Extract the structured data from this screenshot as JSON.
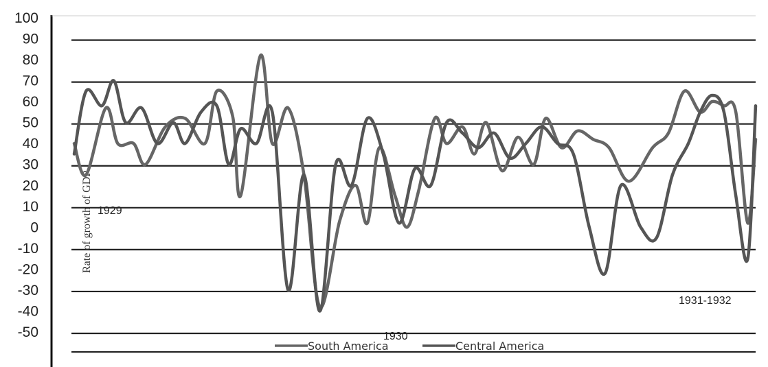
{
  "chart_data": {
    "type": "line",
    "title": "",
    "xlabel": "",
    "ylabel": "Rate of growth of GDP",
    "ylim": [
      -50,
      100
    ],
    "yticks": [
      100,
      90,
      80,
      70,
      60,
      50,
      40,
      30,
      20,
      10,
      0,
      -10,
      -20,
      -30,
      -40,
      -50
    ],
    "xlim": [
      0,
      172
    ],
    "grid": true,
    "legend_position": "bottom-center",
    "annotations": [
      {
        "text": "1929",
        "x": 8,
        "y": 16
      },
      {
        "text": "1930",
        "x": 81,
        "y": -53
      },
      {
        "text": "1931-1932",
        "x": 159,
        "y": -37
      }
    ],
    "colors": {
      "south_america": "#666666",
      "central_america": "#555555"
    },
    "series": [
      {
        "name": "South America",
        "x": [
          0,
          3,
          8,
          11,
          15,
          18,
          23,
          28,
          33,
          36,
          40,
          42,
          47,
          50,
          54,
          58,
          62,
          67,
          71,
          74,
          77,
          81,
          84,
          87,
          91,
          94,
          98,
          101,
          104,
          108,
          112,
          116,
          119,
          123,
          127,
          131,
          135,
          140,
          146,
          150,
          154,
          158,
          161,
          164,
          167,
          170,
          172
        ],
        "y": [
          40,
          25,
          57,
          40,
          40,
          30,
          48,
          52,
          40,
          65,
          53,
          15,
          82,
          40,
          57,
          25,
          -38,
          3,
          20,
          2,
          38,
          15,
          0,
          18,
          52,
          40,
          48,
          35,
          50,
          27,
          43,
          30,
          52,
          38,
          46,
          42,
          38,
          22,
          38,
          45,
          65,
          55,
          60,
          58,
          55,
          2,
          42
        ]
      },
      {
        "name": "Central America",
        "x": [
          0,
          3,
          7,
          10,
          13,
          17,
          21,
          25,
          28,
          32,
          36,
          39,
          42,
          46,
          50,
          54,
          58,
          62,
          66,
          70,
          74,
          78,
          82,
          86,
          90,
          94,
          98,
          102,
          106,
          110,
          114,
          118,
          122,
          126,
          130,
          134,
          138,
          143,
          147,
          151,
          155,
          158,
          161,
          164,
          167,
          170,
          172
        ],
        "y": [
          35,
          65,
          58,
          70,
          50,
          57,
          40,
          50,
          40,
          55,
          58,
          30,
          47,
          40,
          55,
          -30,
          25,
          -40,
          30,
          20,
          52,
          35,
          2,
          28,
          20,
          50,
          45,
          38,
          45,
          33,
          40,
          48,
          40,
          35,
          0,
          -22,
          20,
          0,
          -5,
          25,
          40,
          55,
          63,
          55,
          15,
          -15,
          58
        ]
      }
    ]
  }
}
